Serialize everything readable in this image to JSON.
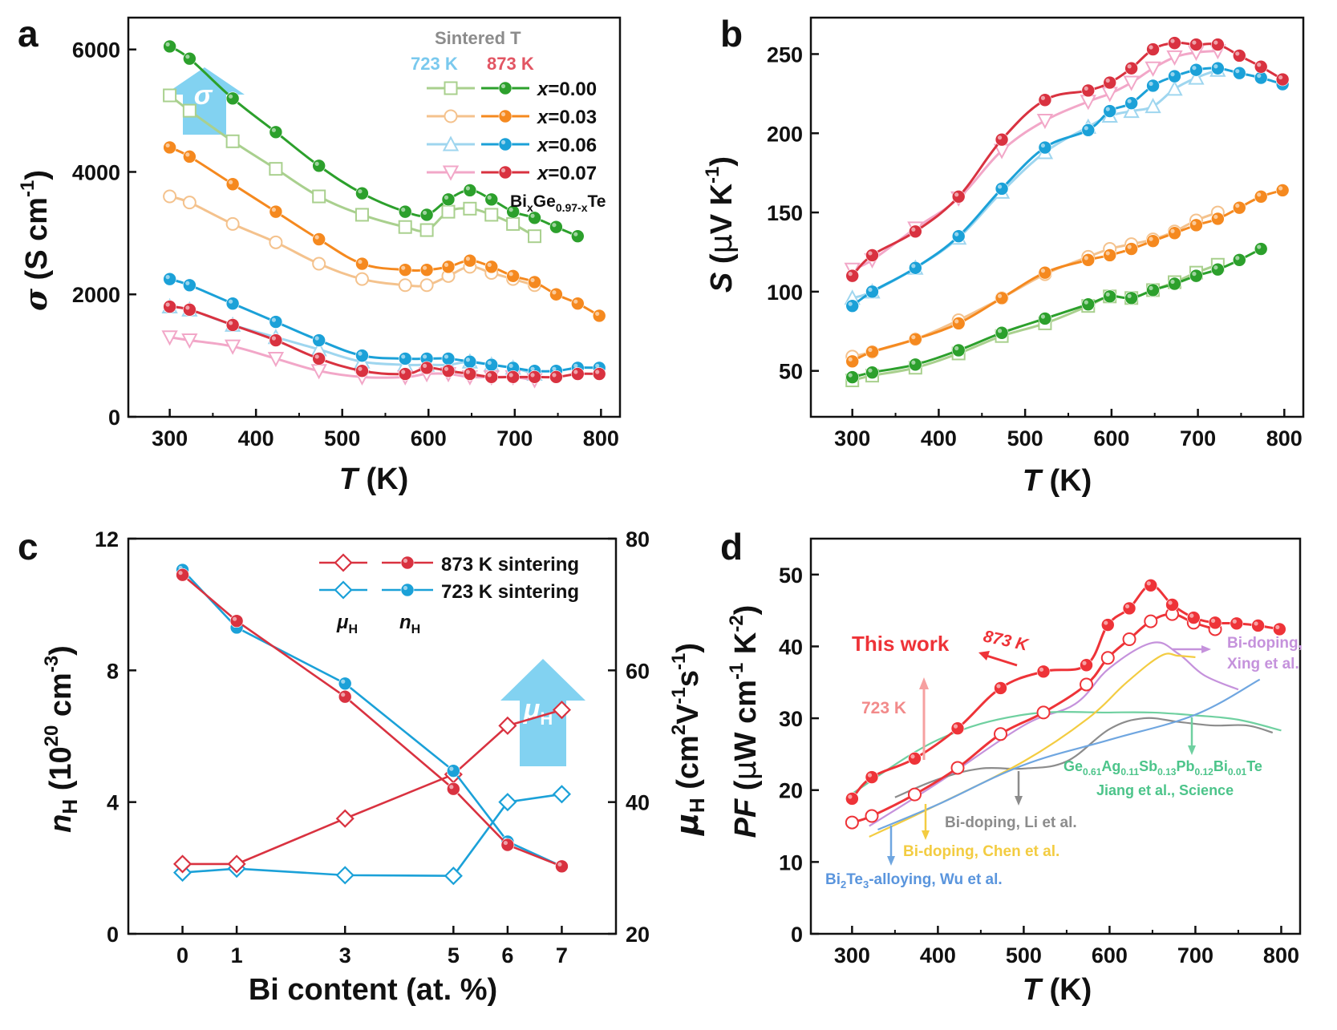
{
  "chart_data": [
    {
      "panel": "a",
      "type": "line",
      "xlabel": "T (K)",
      "ylabel": "σ (S cm⁻¹)",
      "xlim": [
        250,
        800
      ],
      "ylim": [
        0,
        6500
      ],
      "xticks": [
        300,
        400,
        500,
        600,
        700,
        800
      ],
      "yticks": [
        0,
        2000,
        4000,
        6000
      ],
      "legend_header": "Sintered T",
      "legend_723": "723 K",
      "legend_873": "873 K",
      "formula": "BixGe0.97-xTe",
      "arrow_label": "σ",
      "series": [
        {
          "name": "x=0.00",
          "sinter": "723 K",
          "color": "#a9d08e",
          "marker": "square",
          "x": [
            300,
            323,
            373,
            423,
            473,
            523,
            573,
            598,
            623,
            648,
            673,
            698,
            723
          ],
          "y": [
            5250,
            5000,
            4500,
            4050,
            3600,
            3300,
            3100,
            3050,
            3350,
            3400,
            3300,
            3150,
            2950
          ]
        },
        {
          "name": "x=0.00",
          "sinter": "873 K",
          "color": "#2ca02c",
          "marker": "circle",
          "x": [
            300,
            323,
            373,
            423,
            473,
            523,
            573,
            598,
            623,
            648,
            673,
            698,
            723,
            748,
            773
          ],
          "y": [
            6050,
            5850,
            5200,
            4650,
            4100,
            3650,
            3350,
            3300,
            3550,
            3700,
            3550,
            3350,
            3250,
            3100,
            2950
          ]
        },
        {
          "name": "x=0.03",
          "sinter": "723 K",
          "color": "#f4c28d",
          "marker": "circle-open",
          "x": [
            300,
            323,
            373,
            423,
            473,
            523,
            573,
            598,
            623,
            648,
            673,
            698,
            723
          ],
          "y": [
            3600,
            3500,
            3150,
            2850,
            2500,
            2250,
            2150,
            2150,
            2300,
            2450,
            2350,
            2250,
            2150
          ]
        },
        {
          "name": "x=0.03",
          "sinter": "873 K",
          "color": "#f5891f",
          "marker": "circle",
          "x": [
            300,
            323,
            373,
            423,
            473,
            523,
            573,
            598,
            623,
            648,
            673,
            698,
            723,
            748,
            773,
            798
          ],
          "y": [
            4400,
            4250,
            3800,
            3350,
            2900,
            2500,
            2400,
            2400,
            2450,
            2550,
            2450,
            2300,
            2200,
            2000,
            1850,
            1650
          ]
        },
        {
          "name": "x=0.06",
          "sinter": "723 K",
          "color": "#9fd6ef",
          "marker": "triangle",
          "x": [
            300,
            323,
            373,
            423,
            473,
            523,
            573,
            598,
            623,
            648,
            673,
            698,
            723
          ],
          "y": [
            1800,
            1750,
            1500,
            1300,
            1100,
            900,
            850,
            850,
            850,
            900,
            850,
            800,
            700
          ]
        },
        {
          "name": "x=0.06",
          "sinter": "873 K",
          "color": "#1ba1d8",
          "marker": "circle",
          "x": [
            300,
            323,
            373,
            423,
            473,
            523,
            573,
            598,
            623,
            648,
            673,
            698,
            723,
            748,
            773,
            798
          ],
          "y": [
            2250,
            2150,
            1850,
            1550,
            1250,
            1000,
            950,
            950,
            950,
            900,
            850,
            800,
            750,
            750,
            800,
            800
          ]
        },
        {
          "name": "x=0.07",
          "sinter": "723 K",
          "color": "#f2a7c8",
          "marker": "triangle-down",
          "x": [
            300,
            323,
            373,
            423,
            473,
            523,
            573,
            598,
            623,
            648,
            673,
            698,
            723
          ],
          "y": [
            1300,
            1250,
            1150,
            950,
            750,
            650,
            650,
            700,
            700,
            650,
            650,
            650,
            600
          ]
        },
        {
          "name": "x=0.07",
          "sinter": "873 K",
          "color": "#d93240",
          "marker": "circle",
          "x": [
            300,
            323,
            373,
            423,
            473,
            523,
            573,
            598,
            623,
            648,
            673,
            698,
            723,
            748,
            773,
            798
          ],
          "y": [
            1800,
            1750,
            1500,
            1250,
            950,
            750,
            700,
            800,
            750,
            700,
            650,
            650,
            650,
            650,
            700,
            700
          ]
        }
      ]
    },
    {
      "panel": "b",
      "type": "line",
      "xlabel": "T (K)",
      "ylabel": "S (μV K⁻¹)",
      "xlim": [
        250,
        800
      ],
      "ylim": [
        30,
        270
      ],
      "xticks": [
        300,
        400,
        500,
        600,
        700,
        800
      ],
      "yticks": [
        50,
        100,
        150,
        200,
        250
      ],
      "series": [
        {
          "sinter": "723 K",
          "color": "#a9d08e",
          "marker": "square",
          "x": [
            300,
            323,
            373,
            423,
            473,
            523,
            573,
            598,
            623,
            648,
            673,
            698,
            723
          ],
          "y": [
            44,
            47,
            52,
            61,
            72,
            80,
            91,
            97,
            96,
            101,
            106,
            112,
            117
          ]
        },
        {
          "sinter": "873 K",
          "color": "#2ca02c",
          "marker": "circle",
          "x": [
            300,
            323,
            373,
            423,
            473,
            523,
            573,
            598,
            623,
            648,
            673,
            698,
            723,
            748,
            773
          ],
          "y": [
            46,
            49,
            54,
            63,
            74,
            83,
            92,
            97,
            96,
            101,
            105,
            110,
            114,
            120,
            127
          ]
        },
        {
          "sinter": "723 K",
          "color": "#f4c28d",
          "marker": "circle-open",
          "x": [
            300,
            323,
            373,
            423,
            473,
            523,
            573,
            598,
            623,
            648,
            673,
            698,
            723
          ],
          "y": [
            59,
            62,
            70,
            82,
            96,
            111,
            122,
            127,
            130,
            133,
            138,
            145,
            150
          ]
        },
        {
          "sinter": "873 K",
          "color": "#f5891f",
          "marker": "circle",
          "x": [
            300,
            323,
            373,
            423,
            473,
            523,
            573,
            598,
            623,
            648,
            673,
            698,
            723,
            748,
            773,
            798
          ],
          "y": [
            56,
            62,
            70,
            80,
            96,
            112,
            120,
            123,
            127,
            132,
            137,
            142,
            146,
            153,
            160,
            164
          ]
        },
        {
          "sinter": "723 K",
          "color": "#9fd6ef",
          "marker": "triangle",
          "x": [
            300,
            323,
            373,
            423,
            473,
            523,
            573,
            598,
            623,
            648,
            673,
            698,
            723
          ],
          "y": [
            96,
            100,
            115,
            134,
            163,
            188,
            204,
            211,
            214,
            217,
            228,
            235,
            240
          ]
        },
        {
          "sinter": "873 K",
          "color": "#1ba1d8",
          "marker": "circle",
          "x": [
            300,
            323,
            373,
            423,
            473,
            523,
            573,
            598,
            623,
            648,
            673,
            698,
            723,
            748,
            773,
            798
          ],
          "y": [
            91,
            100,
            115,
            135,
            165,
            191,
            202,
            214,
            219,
            230,
            236,
            240,
            241,
            238,
            235,
            231
          ]
        },
        {
          "sinter": "723 K",
          "color": "#f2a7c8",
          "marker": "triangle-down",
          "x": [
            300,
            323,
            373,
            423,
            473,
            523,
            573,
            598,
            623,
            648,
            673,
            698,
            723
          ],
          "y": [
            114,
            120,
            140,
            159,
            189,
            208,
            220,
            225,
            232,
            241,
            248,
            251,
            252
          ]
        },
        {
          "sinter": "873 K",
          "color": "#d93240",
          "marker": "circle",
          "x": [
            300,
            323,
            373,
            423,
            473,
            523,
            573,
            598,
            623,
            648,
            673,
            698,
            723,
            748,
            773,
            798
          ],
          "y": [
            110,
            123,
            138,
            160,
            196,
            221,
            227,
            232,
            241,
            253,
            257,
            256,
            256,
            249,
            242,
            234
          ]
        }
      ]
    },
    {
      "panel": "c",
      "type": "line",
      "xlabel": "Bi content (at. %)",
      "ylabel_left": "nH (10²⁰ cm⁻³)",
      "ylabel_right": "μH (cm²V⁻¹s⁻¹)",
      "categories": [
        "0",
        "1",
        "3",
        "5",
        "6",
        "7"
      ],
      "x": [
        0,
        1,
        3,
        5,
        6,
        7
      ],
      "xlim": [
        -1,
        8
      ],
      "ylim_left": [
        0,
        12
      ],
      "ylim_right": [
        20,
        80
      ],
      "yticks_left": [
        0,
        4,
        8,
        12
      ],
      "yticks_right": [
        20,
        40,
        60,
        80
      ],
      "legend_873": "873 K sintering",
      "legend_723": "723 K sintering",
      "legend_mu": "μH",
      "legend_n": "nH",
      "arrow_label": "μH",
      "series": [
        {
          "sinter": "873 K",
          "quantity": "μH",
          "axis": "right",
          "color": "#d93240",
          "marker": "diamond-open",
          "y": [
            30.6,
            30.6,
            37.5,
            44.2,
            51.6,
            54.0
          ]
        },
        {
          "sinter": "723 K",
          "quantity": "μH",
          "axis": "right",
          "color": "#1ba1d8",
          "marker": "diamond-open",
          "y": [
            29.3,
            29.9,
            28.9,
            28.8,
            40.0,
            41.2
          ]
        },
        {
          "sinter": "873 K",
          "quantity": "nH",
          "axis": "left",
          "color": "#d93240",
          "marker": "circle",
          "y": [
            10.9,
            9.5,
            7.2,
            4.4,
            2.7,
            2.05
          ]
        },
        {
          "sinter": "723 K",
          "quantity": "nH",
          "axis": "left",
          "color": "#1ba1d8",
          "marker": "circle",
          "y": [
            11.05,
            9.3,
            7.6,
            4.95,
            2.8,
            2.05
          ]
        }
      ]
    },
    {
      "panel": "d",
      "type": "line",
      "xlabel": "T (K)",
      "ylabel": "PF (μW cm⁻¹ K⁻²)",
      "xlim": [
        250,
        800
      ],
      "ylim": [
        0,
        55
      ],
      "xticks": [
        300,
        400,
        500,
        600,
        700,
        800
      ],
      "yticks": [
        0,
        10,
        20,
        30,
        40,
        50
      ],
      "annotations": {
        "this_work": "This work",
        "k873": "873 K",
        "k723": "723 K",
        "xing1": "Bi-doping,",
        "xing2": "Xing et al.",
        "jiang1": "Ge0.61Ag0.11Sb0.13Pb0.12Bi0.01Te",
        "jiang2": "Jiang et al., Science",
        "li": "Bi-doping, Li et al.",
        "chen": "Bi-doping, Chen et al.",
        "wu": "Bi2Te3-alloying, Wu et al."
      },
      "series": [
        {
          "name": "This work 873 K",
          "color": "#ee3338",
          "marker": "circle",
          "x": [
            300,
            323,
            373,
            423,
            473,
            523,
            573,
            598,
            623,
            648,
            673,
            698,
            723,
            748,
            773,
            798
          ],
          "y": [
            18.8,
            21.8,
            24.4,
            28.6,
            34.2,
            36.5,
            37.4,
            43.0,
            45.3,
            48.5,
            45.8,
            44.0,
            43.3,
            43.2,
            42.9,
            42.4
          ]
        },
        {
          "name": "This work 723 K",
          "color": "#ee3338",
          "marker": "circle-open",
          "x": [
            300,
            323,
            373,
            423,
            473,
            523,
            573,
            598,
            623,
            648,
            673,
            698,
            723
          ],
          "y": [
            15.5,
            16.4,
            19.4,
            23.1,
            27.8,
            30.8,
            34.7,
            38.4,
            41.0,
            43.5,
            44.5,
            43.3,
            42.4
          ]
        },
        {
          "name": "Bi-doping, Xing et al.",
          "color": "#c592dc",
          "marker": "none",
          "x": [
            320,
            400,
            500,
            560,
            600,
            650,
            680,
            710,
            750
          ],
          "y": [
            15,
            21,
            29,
            32,
            37,
            40.5,
            39,
            36,
            34
          ]
        },
        {
          "name": "Jiang et al., Science",
          "color": "#6fd0a0",
          "marker": "none",
          "x": [
            300,
            400,
            500,
            600,
            650,
            700,
            750,
            800
          ],
          "y": [
            19.5,
            27,
            30.5,
            30.8,
            30.8,
            30.4,
            29.8,
            28.3
          ]
        },
        {
          "name": "Bi-doping, Li et al.",
          "color": "#8c8c8c",
          "marker": "none",
          "x": [
            350,
            400,
            450,
            500,
            550,
            600,
            640,
            680,
            720,
            760,
            790
          ],
          "y": [
            19,
            21.5,
            23,
            23,
            24,
            28.5,
            30,
            29.5,
            29,
            29,
            28
          ]
        },
        {
          "name": "Bi-doping, Chen et al.",
          "color": "#f3cc41",
          "marker": "none",
          "x": [
            320,
            400,
            500,
            575,
            620,
            660,
            680,
            700
          ],
          "y": [
            13.5,
            18,
            24,
            30,
            35,
            38.7,
            38.7,
            38.5
          ]
        },
        {
          "name": "Bi2Te3-alloying, Wu et al.",
          "color": "#6fa6e0",
          "marker": "none",
          "x": [
            330,
            400,
            500,
            600,
            700,
            775
          ],
          "y": [
            14.5,
            18,
            23.5,
            27,
            30.5,
            35.4
          ]
        }
      ]
    }
  ],
  "panels": {
    "a": {
      "label": "a"
    },
    "b": {
      "label": "b"
    },
    "c": {
      "label": "c"
    },
    "d": {
      "label": "d"
    }
  }
}
